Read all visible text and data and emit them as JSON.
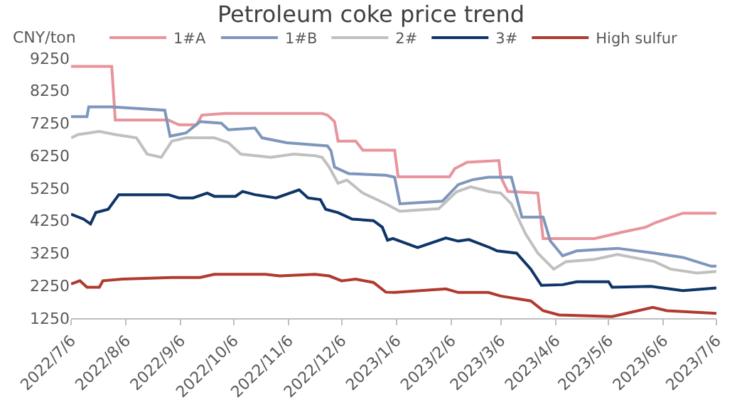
{
  "chart_data": {
    "type": "line",
    "title": "Petroleum coke price trend",
    "ylabel": "CNY/ton",
    "legend": "top",
    "grid": false,
    "marker": "none",
    "line_style": "solid",
    "ylim": [
      1250,
      9250
    ],
    "yticks": [
      1250,
      2250,
      3250,
      4250,
      5250,
      6250,
      7250,
      8250,
      9250
    ],
    "xlim": [
      "2022-07-06",
      "2023-07-06"
    ],
    "xticks": [
      {
        "value": "2022-07-06",
        "label": "2022/7/6"
      },
      {
        "value": "2022-08-06",
        "label": "2022/8/6"
      },
      {
        "value": "2022-09-06",
        "label": "2022/9/6"
      },
      {
        "value": "2022-10-06",
        "label": "2022/10/6"
      },
      {
        "value": "2022-11-06",
        "label": "2022/11/6"
      },
      {
        "value": "2022-12-06",
        "label": "2022/12/6"
      },
      {
        "value": "2023-01-06",
        "label": "2023/1/6"
      },
      {
        "value": "2023-02-06",
        "label": "2023/2/6"
      },
      {
        "value": "2023-03-06",
        "label": "2023/3/6"
      },
      {
        "value": "2023-04-06",
        "label": "2023/4/6"
      },
      {
        "value": "2023-05-06",
        "label": "2023/5/6"
      },
      {
        "value": "2023-06-06",
        "label": "2023/6/6"
      },
      {
        "value": "2023-07-06",
        "label": "2023/7/6"
      }
    ],
    "series": [
      {
        "name": "1#A",
        "color": "#e8949c",
        "x": [
          "2022-07-06",
          "2022-07-29",
          "2022-07-31",
          "2022-08-30",
          "2022-09-05",
          "2022-09-15",
          "2022-09-18",
          "2022-10-01",
          "2022-11-25",
          "2022-11-28",
          "2022-12-02",
          "2022-12-04",
          "2022-12-14",
          "2022-12-18",
          "2023-01-03",
          "2023-01-05",
          "2023-01-07",
          "2023-02-05",
          "2023-02-08",
          "2023-02-15",
          "2023-03-05",
          "2023-03-06",
          "2023-03-10",
          "2023-03-27",
          "2023-03-30",
          "2023-04-28",
          "2023-05-14",
          "2023-05-27",
          "2023-06-02",
          "2023-06-17",
          "2023-07-06"
        ],
        "values": [
          9000,
          9000,
          7350,
          7350,
          7200,
          7200,
          7500,
          7550,
          7550,
          7500,
          7300,
          6700,
          6700,
          6420,
          6420,
          6420,
          5600,
          5600,
          5850,
          6050,
          6100,
          5600,
          5150,
          5100,
          3700,
          3700,
          3900,
          4050,
          4200,
          4480,
          4480
        ]
      },
      {
        "name": "1#B",
        "color": "#7f96bc",
        "x": [
          "2022-07-06",
          "2022-07-15",
          "2022-07-16",
          "2022-07-29",
          "2022-08-28",
          "2022-08-31",
          "2022-09-09",
          "2022-09-17",
          "2022-09-29",
          "2022-10-03",
          "2022-10-18",
          "2022-10-22",
          "2022-11-05",
          "2022-11-28",
          "2022-11-30",
          "2022-12-02",
          "2022-12-10",
          "2022-12-31",
          "2023-01-05",
          "2023-01-08",
          "2023-02-01",
          "2023-02-10",
          "2023-02-18",
          "2023-02-27",
          "2023-03-12",
          "2023-03-18",
          "2023-03-30",
          "2023-04-03",
          "2023-04-10",
          "2023-04-18",
          "2023-05-11",
          "2023-06-01",
          "2023-06-17",
          "2023-07-03",
          "2023-07-06"
        ],
        "values": [
          7450,
          7450,
          7750,
          7750,
          7650,
          6850,
          6950,
          7300,
          7250,
          7050,
          7100,
          6800,
          6650,
          6550,
          6400,
          5900,
          5700,
          5650,
          5590,
          4770,
          4850,
          5360,
          5510,
          5590,
          5590,
          4360,
          4360,
          3630,
          3170,
          3320,
          3400,
          3250,
          3120,
          2850,
          2850
        ]
      },
      {
        "name": "2#",
        "color": "#c0c0c0",
        "x": [
          "2022-07-06",
          "2022-07-10",
          "2022-07-22",
          "2022-07-31",
          "2022-08-12",
          "2022-08-18",
          "2022-08-26",
          "2022-09-01",
          "2022-09-09",
          "2022-09-25",
          "2022-10-03",
          "2022-10-10",
          "2022-10-27",
          "2022-11-09",
          "2022-11-21",
          "2022-11-25",
          "2022-11-29",
          "2022-12-04",
          "2022-12-09",
          "2022-12-18",
          "2022-12-31",
          "2023-01-08",
          "2023-01-30",
          "2023-02-09",
          "2023-02-17",
          "2023-02-28",
          "2023-03-06",
          "2023-03-12",
          "2023-03-20",
          "2023-03-27",
          "2023-04-05",
          "2023-04-12",
          "2023-04-28",
          "2023-05-11",
          "2023-06-01",
          "2023-06-10",
          "2023-06-25",
          "2023-07-06"
        ],
        "values": [
          6800,
          6900,
          7000,
          6900,
          6800,
          6300,
          6200,
          6700,
          6800,
          6800,
          6650,
          6300,
          6200,
          6300,
          6250,
          6200,
          5900,
          5400,
          5500,
          5100,
          4770,
          4540,
          4620,
          5140,
          5290,
          5140,
          5100,
          4770,
          3850,
          3250,
          2760,
          2990,
          3060,
          3210,
          2990,
          2760,
          2640,
          2690
        ]
      },
      {
        "name": "3#",
        "color": "#0f3468",
        "x": [
          "2022-07-06",
          "2022-07-13",
          "2022-07-17",
          "2022-07-20",
          "2022-07-27",
          "2022-08-02",
          "2022-08-30",
          "2022-09-05",
          "2022-09-13",
          "2022-09-21",
          "2022-09-25",
          "2022-10-07",
          "2022-10-11",
          "2022-10-18",
          "2022-10-30",
          "2022-11-12",
          "2022-11-17",
          "2022-11-24",
          "2022-11-27",
          "2022-12-04",
          "2022-12-12",
          "2022-12-24",
          "2022-12-29",
          "2023-01-01",
          "2023-01-04",
          "2023-01-18",
          "2023-02-03",
          "2023-02-10",
          "2023-02-16",
          "2023-02-28",
          "2023-03-04",
          "2023-03-15",
          "2023-03-23",
          "2023-03-29",
          "2023-04-10",
          "2023-04-18",
          "2023-05-06",
          "2023-05-08",
          "2023-05-30",
          "2023-06-17",
          "2023-07-06"
        ],
        "values": [
          4450,
          4300,
          4150,
          4500,
          4600,
          5050,
          5050,
          4950,
          4950,
          5100,
          5000,
          5000,
          5150,
          5050,
          4950,
          5200,
          4950,
          4900,
          4600,
          4500,
          4300,
          4250,
          4050,
          3650,
          3700,
          3420,
          3720,
          3620,
          3670,
          3420,
          3320,
          3250,
          2760,
          2260,
          2280,
          2370,
          2370,
          2200,
          2230,
          2100,
          2180
        ]
      },
      {
        "name": "High sulfur",
        "color": "#b03a2e",
        "x": [
          "2022-07-06",
          "2022-07-11",
          "2022-07-15",
          "2022-07-22",
          "2022-07-24",
          "2022-08-04",
          "2022-09-01",
          "2022-09-17",
          "2022-09-25",
          "2022-10-24",
          "2022-11-01",
          "2022-11-21",
          "2022-11-29",
          "2022-12-06",
          "2022-12-14",
          "2022-12-24",
          "2022-12-31",
          "2023-01-05",
          "2023-02-03",
          "2023-02-10",
          "2023-02-27",
          "2023-03-06",
          "2023-03-23",
          "2023-03-30",
          "2023-04-08",
          "2023-05-08",
          "2023-05-31",
          "2023-06-08",
          "2023-07-06"
        ],
        "values": [
          2300,
          2400,
          2200,
          2200,
          2400,
          2450,
          2500,
          2500,
          2600,
          2600,
          2550,
          2600,
          2550,
          2400,
          2450,
          2350,
          2050,
          2040,
          2150,
          2040,
          2040,
          1930,
          1780,
          1480,
          1350,
          1300,
          1580,
          1480,
          1400
        ]
      }
    ]
  }
}
